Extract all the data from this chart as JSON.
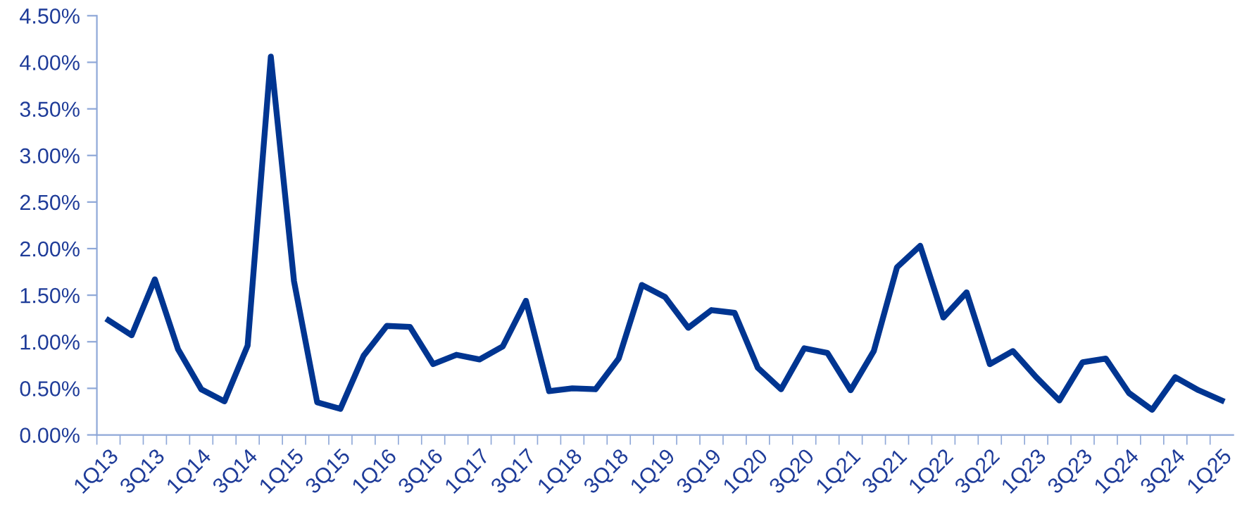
{
  "chart_data": {
    "type": "line",
    "categories": [
      "1Q13",
      null,
      "3Q13",
      null,
      "1Q14",
      null,
      "3Q14",
      null,
      "1Q15",
      null,
      "3Q15",
      null,
      "1Q16",
      null,
      "3Q16",
      null,
      "1Q17",
      null,
      "3Q17",
      null,
      "1Q18",
      null,
      "3Q18",
      null,
      "1Q19",
      null,
      "3Q19",
      null,
      "1Q20",
      null,
      "3Q20",
      null,
      "1Q21",
      null,
      "3Q21",
      null,
      "1Q22",
      null,
      "3Q22",
      null,
      "1Q23",
      null,
      "3Q23",
      null,
      "1Q24",
      null,
      "3Q24",
      null,
      "1Q25"
    ],
    "series": [
      {
        "color": "#003591",
        "values": [
          1.23,
          1.07,
          1.67,
          0.92,
          0.49,
          0.36,
          0.96,
          4.06,
          1.65,
          0.35,
          0.28,
          0.85,
          1.17,
          1.16,
          0.76,
          0.86,
          0.81,
          0.95,
          1.44,
          0.47,
          0.5,
          0.49,
          0.82,
          1.61,
          1.48,
          1.15,
          1.34,
          1.31,
          0.72,
          0.49,
          0.93,
          0.88,
          0.48,
          0.9,
          1.8,
          2.03,
          1.26,
          1.53,
          0.76,
          0.9,
          0.62,
          0.37,
          0.78,
          0.82,
          0.45,
          0.27,
          0.62,
          0.48,
          0.37
        ]
      }
    ],
    "ylim": [
      0,
      4.5
    ],
    "yticks": [
      {
        "value": 0,
        "label": "0.00%"
      },
      {
        "value": 0.5,
        "label": "0.50%"
      },
      {
        "value": 1,
        "label": "1.00%"
      },
      {
        "value": 1.5,
        "label": "1.50%"
      },
      {
        "value": 2,
        "label": "2.00%"
      },
      {
        "value": 2.5,
        "label": "2.50%"
      },
      {
        "value": 3,
        "label": "3.00%"
      },
      {
        "value": 3.5,
        "label": "3.50%"
      },
      {
        "value": 4,
        "label": "4.00%"
      },
      {
        "value": 4.5,
        "label": "4.50%"
      }
    ],
    "grid": false,
    "legend": false,
    "marker": "none",
    "line_style": "solid"
  }
}
